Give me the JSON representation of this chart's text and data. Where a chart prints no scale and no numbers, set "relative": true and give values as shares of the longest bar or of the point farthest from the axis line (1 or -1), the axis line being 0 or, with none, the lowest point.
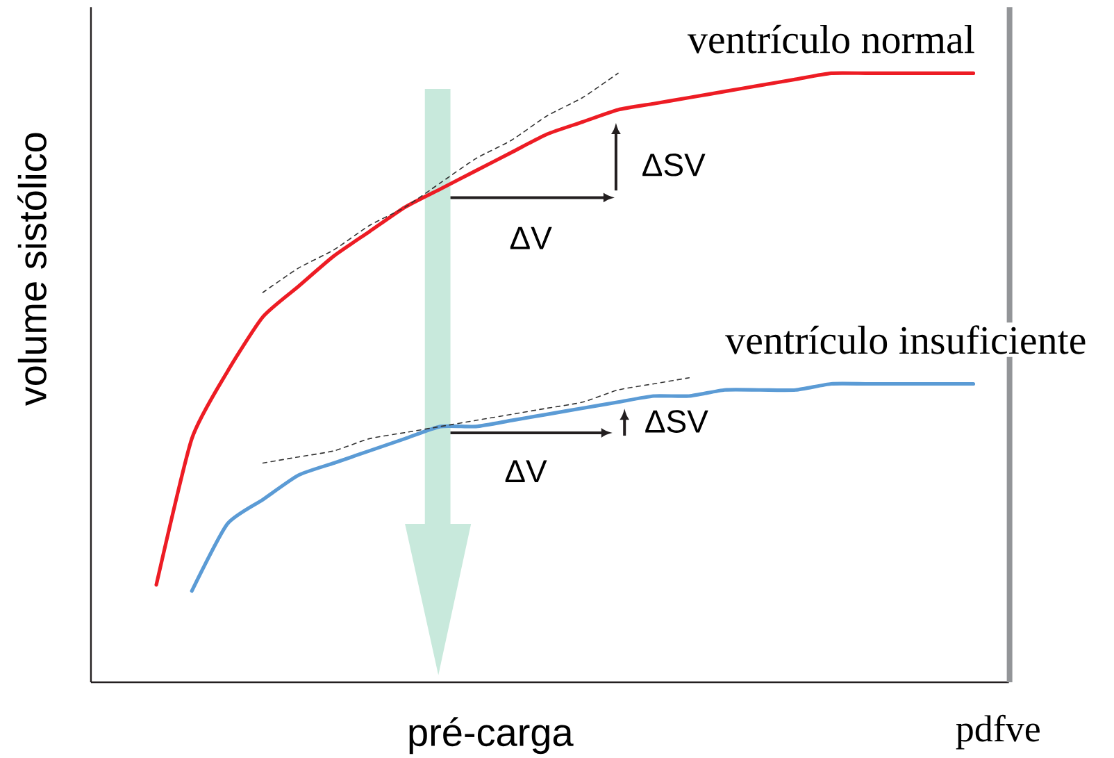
{
  "chart_data": {
    "type": "line",
    "relative": true,
    "xlabel": "pré-carga",
    "ylabel": "volume sistólico",
    "categories": [
      null,
      null,
      null,
      null,
      null,
      null,
      null,
      null,
      null,
      null,
      null,
      null,
      null,
      null,
      null,
      null,
      null,
      null,
      null,
      null,
      null,
      null,
      null,
      null
    ],
    "series": [
      {
        "name": "ventrículo normal",
        "color": "#ed1c24",
        "line_style": "solid",
        "values": [
          0.16,
          0.4,
          0.51,
          0.6,
          0.65,
          0.7,
          0.74,
          0.78,
          0.81,
          0.84,
          0.87,
          0.9,
          0.92,
          0.94,
          0.95,
          0.96,
          0.97,
          0.98,
          0.99,
          1.0,
          1.0,
          1.0,
          1.0,
          1.0
        ]
      },
      {
        "name": "ventrículo insuficiente",
        "color": "#5b9bd5",
        "line_style": "solid",
        "values": [
          null,
          0.15,
          0.26,
          0.3,
          0.34,
          0.36,
          0.38,
          0.4,
          0.42,
          0.42,
          0.43,
          0.44,
          0.45,
          0.46,
          0.47,
          0.47,
          0.48,
          0.48,
          0.48,
          0.49,
          0.49,
          0.49,
          0.49,
          0.49
        ]
      },
      {
        "color": "#333333",
        "line_style": "dashed",
        "values": [
          null,
          null,
          null,
          0.64,
          0.68,
          0.71,
          0.75,
          0.78,
          0.82,
          0.86,
          0.89,
          0.93,
          0.96,
          1.0,
          null,
          null,
          null,
          null,
          null,
          null,
          null,
          null,
          null,
          null
        ]
      },
      {
        "color": "#333333",
        "line_style": "dashed",
        "values": [
          null,
          null,
          null,
          0.36,
          0.37,
          0.38,
          0.4,
          0.41,
          0.42,
          0.43,
          0.44,
          0.45,
          0.46,
          0.48,
          0.49,
          0.5,
          null,
          null,
          null,
          null,
          null,
          null,
          null,
          null
        ]
      }
    ],
    "annotations": [
      "ΔSV",
      "ΔV",
      "ΔSV",
      "ΔV",
      "pdfve"
    ]
  }
}
